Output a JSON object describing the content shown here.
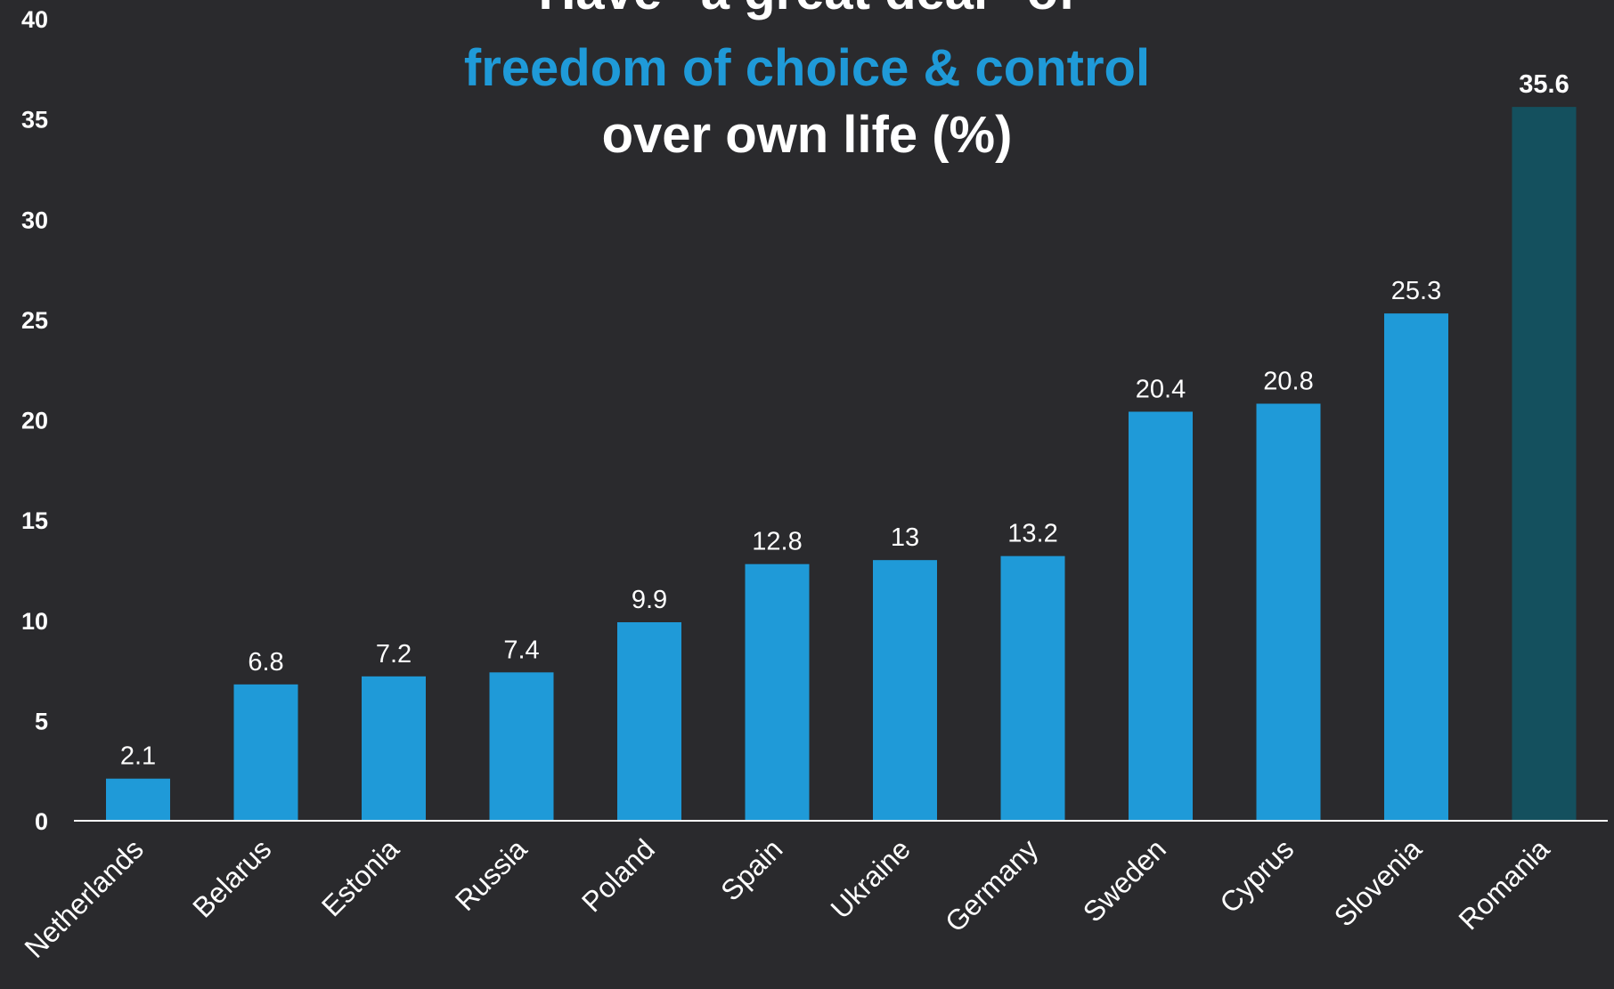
{
  "chart_data": {
    "type": "bar",
    "title_lines": [
      {
        "text": "Have \"a great deal\" of",
        "color": "#ffffff"
      },
      {
        "text": "freedom of choice & control",
        "color": "#1f9ad8"
      },
      {
        "text": "over own life (%)",
        "color": "#ffffff"
      }
    ],
    "categories": [
      "Netherlands",
      "Belarus",
      "Estonia",
      "Russia",
      "Poland",
      "Spain",
      "Ukraine",
      "Germany",
      "Sweden",
      "Cyprus",
      "Slovenia",
      "Romania"
    ],
    "values": [
      2.1,
      6.8,
      7.2,
      7.4,
      9.9,
      12.8,
      13,
      13.2,
      20.4,
      20.8,
      25.3,
      35.6
    ],
    "data_labels": [
      "2.1",
      "6.8",
      "7.2",
      "7.4",
      "9.9",
      "12.8",
      "13",
      "13.2",
      "20.4",
      "20.8",
      "25.3",
      "35.6"
    ],
    "ylim": [
      0,
      40
    ],
    "yticks": [
      0,
      5,
      10,
      15,
      20,
      25,
      30,
      35,
      40
    ],
    "highlight_category": "Romania",
    "colors": {
      "bar": "#1f9ad8",
      "highlight_bar": "#14505e",
      "background": "#2a2a2d",
      "axis": "#ffffff",
      "text": "#ffffff"
    },
    "grid": false,
    "legend": "none"
  }
}
